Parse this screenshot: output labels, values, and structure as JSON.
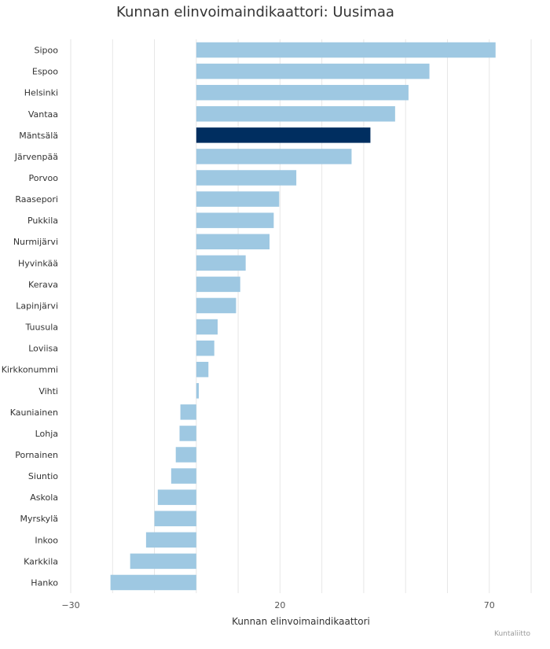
{
  "colors": {
    "bar": "#9ec8e2",
    "highlight": "#002e60",
    "grid": "#e6e6e6"
  },
  "credit": "Kuntaliitto",
  "chart_data": {
    "type": "bar",
    "orientation": "horizontal",
    "title": "Kunnan elinvoimaindikaattori: Uusimaa",
    "xlabel": "Kunnan elinvoimaindikaattori",
    "ylabel": "",
    "xlim": [
      -30,
      80
    ],
    "tick_values": [
      -30,
      20,
      70
    ],
    "tick_labels": [
      "−30",
      "20",
      "70"
    ],
    "grid": true,
    "legend": "none",
    "highlighted_category": "Mäntsälä",
    "categories": [
      "Sipoo",
      "Espoo",
      "Helsinki",
      "Vantaa",
      "Mäntsälä",
      "Järvenpää",
      "Porvoo",
      "Raasepori",
      "Pukkila",
      "Nurmijärvi",
      "Hyvinkää",
      "Kerava",
      "Lapinjärvi",
      "Tuusula",
      "Loviisa",
      "Kirkkonummi",
      "Vihti",
      "Kauniainen",
      "Lohja",
      "Pornainen",
      "Siuntio",
      "Askola",
      "Myrskylä",
      "Inkoo",
      "Karkkila",
      "Hanko"
    ],
    "values": [
      71.5,
      55.7,
      50.7,
      47.5,
      41.6,
      37.1,
      23.9,
      19.8,
      18.5,
      17.5,
      11.8,
      10.5,
      9.5,
      5.1,
      4.3,
      2.9,
      0.6,
      -3.8,
      -4.0,
      -4.9,
      -6.0,
      -9.2,
      -10.0,
      -12.0,
      -15.8,
      -20.5
    ]
  }
}
